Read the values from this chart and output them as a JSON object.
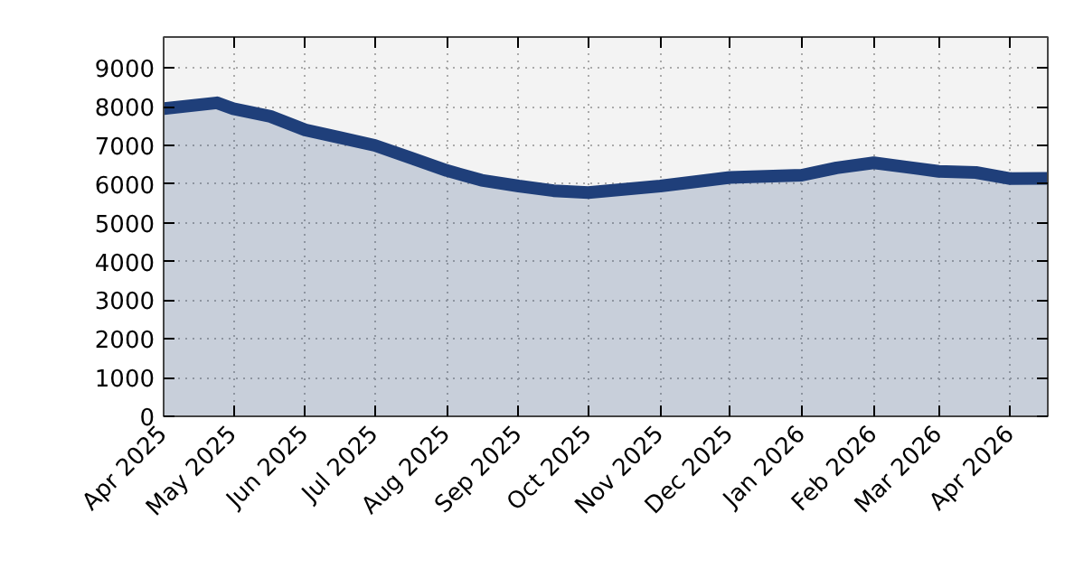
{
  "chart_data": {
    "type": "area",
    "x": [
      "2025-04-01",
      "2025-04-24",
      "2025-05-01",
      "2025-05-17",
      "2025-06-01",
      "2025-06-16",
      "2025-07-01",
      "2025-07-16",
      "2025-08-01",
      "2025-08-16",
      "2025-09-01",
      "2025-09-16",
      "2025-10-01",
      "2025-11-01",
      "2025-12-01",
      "2026-01-01",
      "2026-01-16",
      "2026-02-01",
      "2026-02-14",
      "2026-03-01",
      "2026-03-17",
      "2026-04-01",
      "2026-04-17"
    ],
    "series": [
      {
        "color": "#1f3f7a",
        "values": [
          7950,
          8100,
          7950,
          7750,
          7400,
          7200,
          7000,
          6690,
          6350,
          6100,
          5950,
          5830,
          5780,
          5950,
          6170,
          6230,
          6420,
          6550,
          6450,
          6330,
          6300,
          6140,
          6150
        ]
      }
    ],
    "xlim": [
      "2025-04-01",
      "2026-04-17"
    ],
    "xticks": [
      {
        "value": "2025-04-01",
        "label": "Apr 2025"
      },
      {
        "value": "2025-05-01",
        "label": "May 2025"
      },
      {
        "value": "2025-06-01",
        "label": "Jun 2025"
      },
      {
        "value": "2025-07-01",
        "label": "Jul 2025"
      },
      {
        "value": "2025-08-01",
        "label": "Aug 2025"
      },
      {
        "value": "2025-09-01",
        "label": "Sep 2025"
      },
      {
        "value": "2025-10-01",
        "label": "Oct 2025"
      },
      {
        "value": "2025-11-01",
        "label": "Nov 2025"
      },
      {
        "value": "2025-12-01",
        "label": "Dec 2025"
      },
      {
        "value": "2026-01-01",
        "label": "Jan 2026"
      },
      {
        "value": "2026-02-01",
        "label": "Feb 2026"
      },
      {
        "value": "2026-03-01",
        "label": "Mar 2026"
      },
      {
        "value": "2026-04-01",
        "label": "Apr 2026"
      }
    ],
    "ylim": [
      0,
      9800
    ],
    "yticks": [
      0,
      1000,
      2000,
      3000,
      4000,
      5000,
      6000,
      7000,
      8000,
      9000
    ],
    "grid": true,
    "line_style": "solid"
  }
}
